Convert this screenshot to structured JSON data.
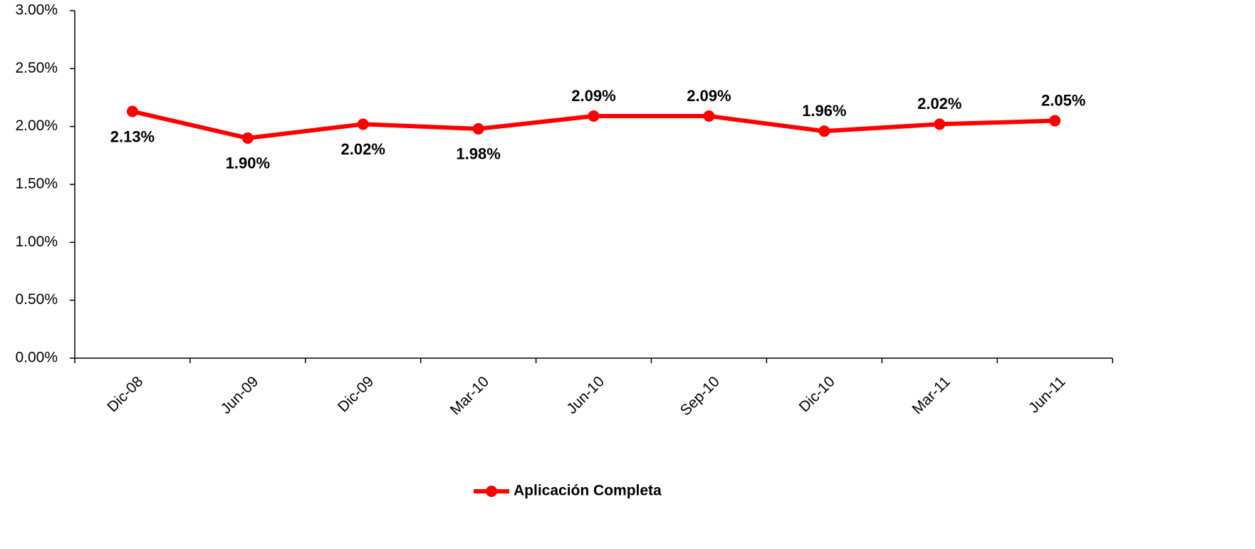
{
  "chart_data": {
    "type": "line",
    "categories": [
      "Dic-08",
      "Jun-09",
      "Dic-09",
      "Mar-10",
      "Jun-10",
      "Sep-10",
      "Dic-10",
      "Mar-11",
      "Jun-11"
    ],
    "series": [
      {
        "name": "Aplicación Completa",
        "color": "#ff0000",
        "values": [
          2.13,
          1.9,
          2.02,
          1.98,
          2.09,
          2.09,
          1.96,
          2.02,
          2.05
        ],
        "value_labels": [
          "2.13%",
          "1.90%",
          "2.02%",
          "1.98%",
          "2.09%",
          "2.09%",
          "1.96%",
          "2.02%",
          "2.05%"
        ]
      }
    ],
    "ylim": [
      0,
      3
    ],
    "yticks": [
      {
        "value": 0,
        "label": "0.00%"
      },
      {
        "value": 0.5,
        "label": "0.50%"
      },
      {
        "value": 1,
        "label": "1.00%"
      },
      {
        "value": 1.5,
        "label": "1.50%"
      },
      {
        "value": 2,
        "label": "2.00%"
      },
      {
        "value": 2.5,
        "label": "2.50%"
      },
      {
        "value": 3,
        "label": "3.00%"
      }
    ],
    "legend": "bottom"
  }
}
